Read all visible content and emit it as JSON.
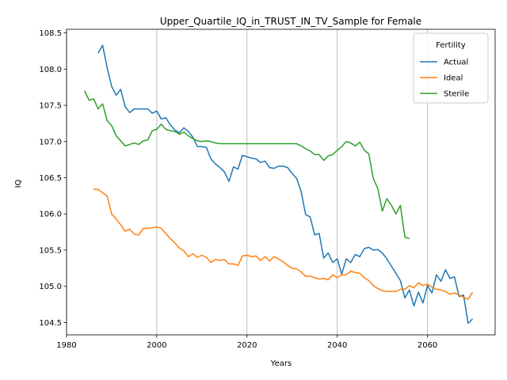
{
  "chart_data": {
    "type": "line",
    "title": "Upper_Quartile_IQ_in_TRUST_IN_TV_Sample for Female",
    "xlabel": "Years",
    "ylabel": "IQ",
    "xlim": [
      1980,
      2075
    ],
    "ylim": [
      104.33,
      108.55
    ],
    "xticks": [
      1980,
      2000,
      2020,
      2040,
      2060
    ],
    "yticks": [
      104.5,
      105.0,
      105.5,
      106.0,
      106.5,
      107.0,
      107.5,
      108.0,
      108.5
    ],
    "ytick_labels": [
      "104.5",
      "105.0",
      "105.5",
      "106.0",
      "106.5",
      "107.0",
      "107.5",
      "108.0",
      "108.5"
    ],
    "grid": "x-only",
    "legend": {
      "title": "Fertility",
      "placement": "top-right"
    },
    "series": [
      {
        "name": "Actual",
        "color": "#1f77b4",
        "x": [
          1987,
          1988,
          1989,
          1990,
          1991,
          1992,
          1993,
          1994,
          1995,
          1996,
          1997,
          1998,
          1999,
          2000,
          2001,
          2002,
          2003,
          2004,
          2005,
          2006,
          2007,
          2008,
          2009,
          2010,
          2011,
          2012,
          2013,
          2014,
          2015,
          2016,
          2017,
          2018,
          2019,
          2020,
          2021,
          2022,
          2023,
          2024,
          2025,
          2026,
          2027,
          2028,
          2029,
          2030,
          2031,
          2032,
          2033,
          2034,
          2035,
          2036,
          2037,
          2038,
          2039,
          2040,
          2041,
          2042,
          2043,
          2044,
          2045,
          2046,
          2047,
          2048,
          2049,
          2050,
          2051,
          2052,
          2053,
          2054,
          2055,
          2056,
          2057,
          2058,
          2059,
          2060,
          2061,
          2062,
          2063,
          2064,
          2065,
          2066,
          2067,
          2068,
          2069,
          2070
        ],
        "values": [
          108.22,
          108.33,
          108.02,
          107.76,
          107.64,
          107.72,
          107.48,
          107.4,
          107.45,
          107.45,
          107.45,
          107.45,
          107.39,
          107.42,
          107.31,
          107.33,
          107.23,
          107.16,
          107.12,
          107.19,
          107.14,
          107.06,
          106.93,
          106.93,
          106.92,
          106.76,
          106.69,
          106.64,
          106.58,
          106.45,
          106.65,
          106.62,
          106.81,
          106.79,
          106.77,
          106.76,
          106.71,
          106.73,
          106.64,
          106.63,
          106.66,
          106.66,
          106.64,
          106.56,
          106.49,
          106.31,
          105.99,
          105.96,
          105.71,
          105.73,
          105.39,
          105.46,
          105.33,
          105.38,
          105.17,
          105.38,
          105.33,
          105.44,
          105.41,
          105.52,
          105.54,
          105.5,
          105.51,
          105.46,
          105.38,
          105.28,
          105.18,
          105.08,
          104.84,
          104.95,
          104.73,
          104.92,
          104.77,
          105.01,
          104.91,
          105.16,
          105.07,
          105.23,
          105.11,
          105.13,
          104.86,
          104.88,
          104.49,
          104.55
        ]
      },
      {
        "name": "Ideal",
        "color": "#ff7f0e",
        "x": [
          1986,
          1987,
          1988,
          1989,
          1990,
          1991,
          1992,
          1993,
          1994,
          1995,
          1996,
          1997,
          1998,
          1999,
          2000,
          2001,
          2002,
          2003,
          2004,
          2005,
          2006,
          2007,
          2008,
          2009,
          2010,
          2011,
          2012,
          2013,
          2014,
          2015,
          2016,
          2017,
          2018,
          2019,
          2020,
          2021,
          2022,
          2023,
          2024,
          2025,
          2026,
          2027,
          2028,
          2029,
          2030,
          2031,
          2032,
          2033,
          2034,
          2035,
          2036,
          2037,
          2038,
          2039,
          2040,
          2041,
          2042,
          2043,
          2044,
          2045,
          2046,
          2047,
          2048,
          2049,
          2050,
          2051,
          2052,
          2053,
          2054,
          2055,
          2056,
          2057,
          2058,
          2059,
          2060,
          2061,
          2062,
          2063,
          2064,
          2065,
          2066,
          2067,
          2068,
          2069,
          2070
        ],
        "values": [
          106.34,
          106.34,
          106.29,
          106.25,
          106.0,
          105.93,
          105.85,
          105.76,
          105.79,
          105.72,
          105.71,
          105.8,
          105.8,
          105.81,
          105.82,
          105.8,
          105.73,
          105.66,
          105.6,
          105.53,
          105.49,
          105.41,
          105.45,
          105.4,
          105.43,
          105.4,
          105.33,
          105.37,
          105.36,
          105.37,
          105.31,
          105.31,
          105.29,
          105.42,
          105.43,
          105.41,
          105.42,
          105.36,
          105.41,
          105.35,
          105.41,
          105.38,
          105.34,
          105.29,
          105.25,
          105.24,
          105.2,
          105.14,
          105.14,
          105.12,
          105.1,
          105.11,
          105.09,
          105.16,
          105.12,
          105.16,
          105.16,
          105.21,
          105.19,
          105.18,
          105.12,
          105.08,
          105.01,
          104.97,
          104.94,
          104.93,
          104.93,
          104.93,
          104.96,
          104.96,
          105.01,
          104.98,
          105.05,
          105.01,
          105.03,
          104.99,
          104.96,
          104.95,
          104.93,
          104.89,
          104.91,
          104.88,
          104.85,
          104.82,
          104.92
        ]
      },
      {
        "name": "Sterile",
        "color": "#2ca02c",
        "x": [
          1984,
          1985,
          1986,
          1987,
          1988,
          1989,
          1990,
          1991,
          1992,
          1993,
          1994,
          1995,
          1996,
          1997,
          1998,
          1999,
          2000,
          2001,
          2002,
          2003,
          2004,
          2005,
          2006,
          2007,
          2008,
          2009,
          2010,
          2011,
          2012,
          2013,
          2014,
          2015,
          2016,
          2017,
          2018,
          2019,
          2020,
          2021,
          2022,
          2023,
          2024,
          2025,
          2026,
          2027,
          2028,
          2029,
          2030,
          2031,
          2032,
          2033,
          2034,
          2035,
          2036,
          2037,
          2038,
          2039,
          2040,
          2041,
          2042,
          2043,
          2044,
          2045,
          2046,
          2047,
          2048,
          2049,
          2050,
          2051,
          2052,
          2053,
          2054,
          2055,
          2056
        ],
        "values": [
          107.7,
          107.57,
          107.59,
          107.45,
          107.52,
          107.29,
          107.22,
          107.08,
          107.01,
          106.94,
          106.96,
          106.98,
          106.96,
          107.01,
          107.02,
          107.15,
          107.17,
          107.24,
          107.17,
          107.15,
          107.14,
          107.1,
          107.13,
          107.08,
          107.04,
          107.01,
          107.0,
          107.01,
          107.0,
          106.98,
          106.97,
          106.97,
          106.97,
          106.97,
          106.97,
          106.97,
          106.97,
          106.97,
          106.97,
          106.97,
          106.97,
          106.97,
          106.97,
          106.97,
          106.97,
          106.97,
          106.97,
          106.97,
          106.94,
          106.9,
          106.87,
          106.82,
          106.82,
          106.74,
          106.8,
          106.82,
          106.88,
          106.93,
          107.0,
          106.98,
          106.94,
          106.99,
          106.88,
          106.83,
          106.49,
          106.35,
          106.04,
          106.21,
          106.12,
          106.0,
          106.12,
          105.68,
          105.66
        ]
      }
    ]
  }
}
